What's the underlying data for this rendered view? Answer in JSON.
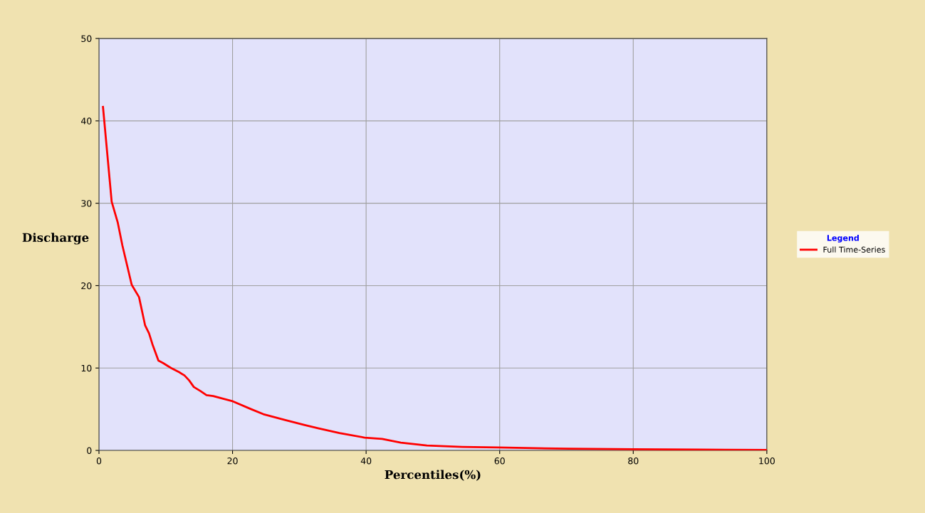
{
  "chart_data": {
    "type": "line",
    "xlabel": "Percentiles(%)",
    "ylabel": "Discharge",
    "legend_title": "Legend",
    "xlim": [
      0,
      100
    ],
    "ylim": [
      0,
      50
    ],
    "xticks": [
      0,
      20,
      40,
      60,
      80,
      100
    ],
    "yticks": [
      0,
      10,
      20,
      30,
      40,
      50
    ],
    "grid": true,
    "legend": "right",
    "marker": "none",
    "line_style": "solid",
    "series": [
      {
        "name": "Full Time-Series",
        "color": "#ff0000",
        "x": [
          0.6,
          1.9,
          2.8,
          3.5,
          4.9,
          6.0,
          6.9,
          7.5,
          8.0,
          8.9,
          9.6,
          10.8,
          12.0,
          12.8,
          13.5,
          14.2,
          15.2,
          16.1,
          17.1,
          19.9,
          22.8,
          24.6,
          27.8,
          30.7,
          32.8,
          36.0,
          39.8,
          42.4,
          45.2,
          49.1,
          54.4,
          59.7,
          70.4,
          80.0,
          90.0,
          100.0
        ],
        "values": [
          41.7,
          30.2,
          27.7,
          24.9,
          20.1,
          18.6,
          15.2,
          14.2,
          12.9,
          10.9,
          10.6,
          10.0,
          9.5,
          9.1,
          8.5,
          7.7,
          7.2,
          6.7,
          6.6,
          6.0,
          5.0,
          4.4,
          3.7,
          3.1,
          2.7,
          2.1,
          1.55,
          1.4,
          0.95,
          0.6,
          0.43,
          0.35,
          0.2,
          0.15,
          0.1,
          0.05
        ]
      }
    ]
  }
}
